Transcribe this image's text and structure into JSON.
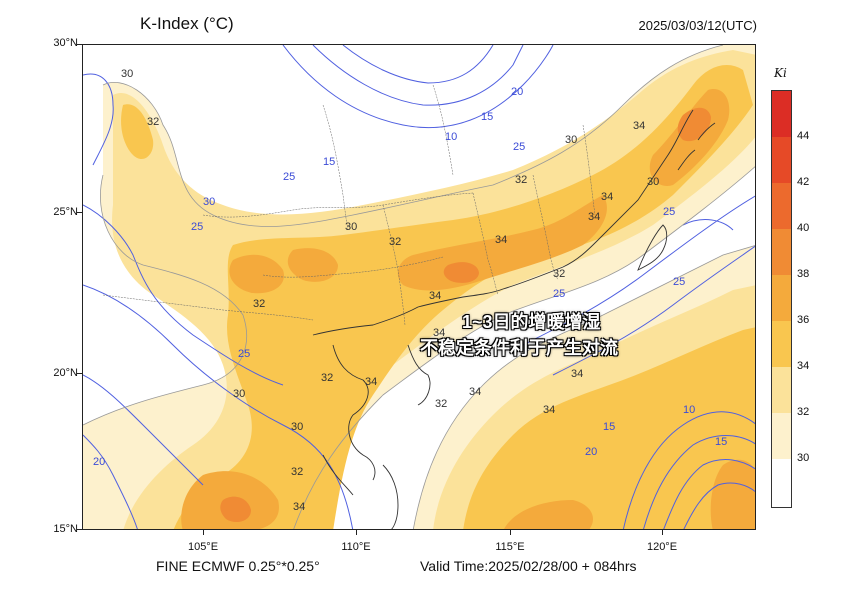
{
  "header": {
    "title": "K-Index (°C)",
    "datetime": "2025/03/03/12(UTC)"
  },
  "legend": {
    "symbol": "Ki",
    "levels": [
      "30",
      "32",
      "34",
      "36",
      "38",
      "40",
      "42",
      "44"
    ],
    "colors": {
      "below_30": "#ffffff",
      "30_32": "#fdf1cd",
      "32_34": "#fbe29a",
      "34_36": "#f9c64f",
      "36_38": "#f4aa3c",
      "38_40": "#f08b34",
      "40_42": "#ec6a2d",
      "42_44": "#e64a27",
      "above_44": "#dc2d25"
    }
  },
  "axes": {
    "y_ticks": [
      "30°N",
      "25°N",
      "20°N",
      "15°N"
    ],
    "x_ticks": [
      "105°E",
      "110°E",
      "115°E",
      "120°E"
    ]
  },
  "contour_labels": {
    "grey": [
      "30",
      "32",
      "32",
      "30",
      "32",
      "34",
      "34",
      "34",
      "32",
      "34",
      "34",
      "32",
      "34",
      "34",
      "32",
      "34",
      "30",
      "30",
      "32",
      "34",
      "30",
      "32",
      "34",
      "30",
      "34"
    ],
    "blue": [
      "30",
      "25",
      "20",
      "15",
      "10",
      "15",
      "25",
      "25",
      "25",
      "25",
      "25",
      "25",
      "20",
      "15",
      "10",
      "15",
      "20"
    ]
  },
  "annotation": {
    "line1": "1~3日的增暖增湿",
    "line2": "不稳定条件利于产生对流"
  },
  "footer": {
    "source": "FINE ECMWF 0.25°*0.25°",
    "valid_time": "Valid Time:2025/02/28/00 + 084hrs"
  }
}
